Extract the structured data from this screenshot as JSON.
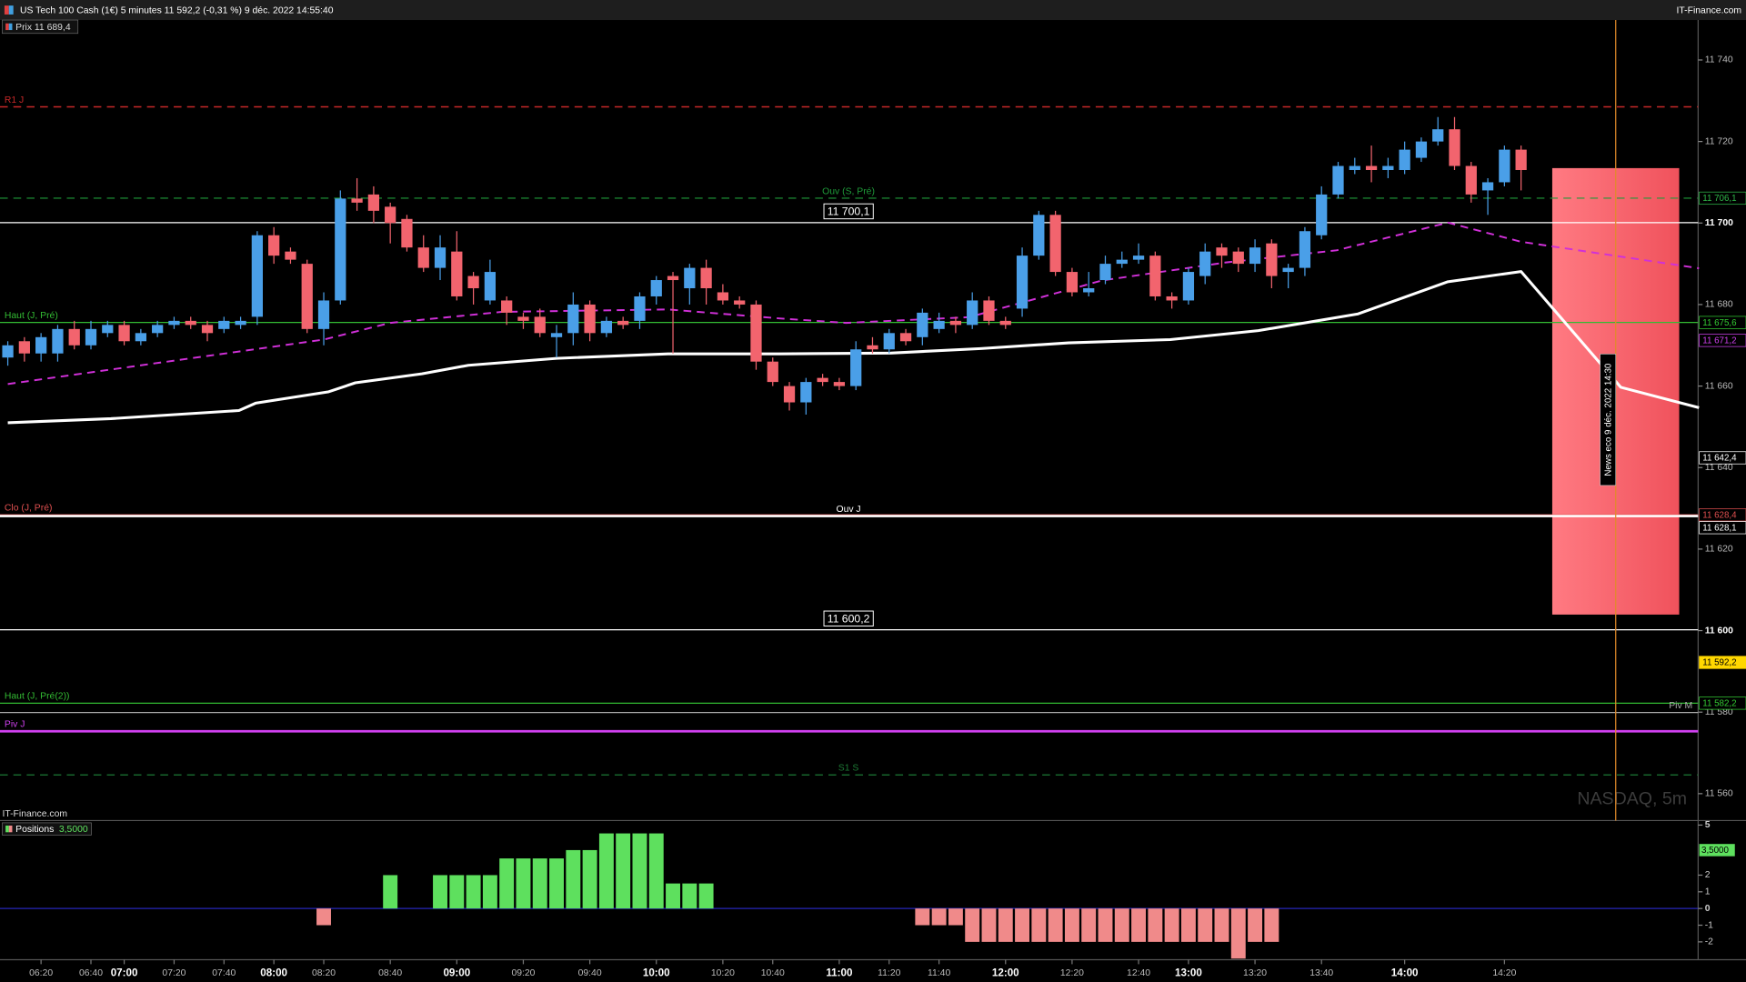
{
  "window": {
    "title": "US Tech 100 Cash (1€) 5 minutes 11 592,2 (-0,31 %) 9 déc. 2022 14:55:40",
    "brand": "IT-Finance.com"
  },
  "chart_data": [
    {
      "type": "candlestick",
      "legend": "Prix 11 689,4",
      "watermark": "NASDAQ, 5m",
      "footer": "IT-Finance.com",
      "news": "News eco 9 déc. 2022 14:30",
      "up_color": "#4a9fe8",
      "down_color": "#f2646e",
      "categories": [
        null,
        null,
        "06:20",
        null,
        null,
        "06:40",
        null,
        "07:00",
        null,
        null,
        "07:20",
        null,
        null,
        "07:40",
        null,
        null,
        "08:00",
        null,
        null,
        "08:20",
        null,
        null,
        null,
        "08:40",
        null,
        null,
        null,
        "09:00",
        null,
        null,
        null,
        "09:20",
        null,
        null,
        null,
        "09:40",
        null,
        null,
        null,
        "10:00",
        null,
        null,
        null,
        "10:20",
        null,
        null,
        "10:40",
        null,
        null,
        null,
        "11:00",
        null,
        null,
        "11:20",
        null,
        null,
        "11:40",
        null,
        null,
        null,
        "12:00",
        null,
        null,
        null,
        "12:20",
        null,
        null,
        null,
        "12:40",
        null,
        null,
        "13:00",
        null,
        null,
        null,
        "13:20",
        null,
        null,
        null,
        "13:40",
        null,
        null,
        null,
        null,
        "14:00",
        null,
        null,
        null,
        null,
        null,
        "14:20",
        null
      ],
      "open": [
        11667,
        11671,
        11668,
        11668,
        11674,
        11670,
        11673,
        11675,
        11671,
        11673,
        11675,
        11676,
        11675,
        11674,
        11675,
        11677,
        11697,
        11693,
        11690,
        11674,
        11681,
        11706,
        11707,
        11704,
        11701,
        11694,
        11689,
        11693,
        11687,
        11681,
        11681,
        11677,
        11677,
        11672,
        11673,
        11680,
        11673,
        11676,
        11676,
        11682,
        11687,
        11684,
        11689,
        11683,
        11681,
        11680,
        11666,
        11660,
        11656,
        11662,
        11661,
        11660,
        11670,
        11669,
        11673,
        11672,
        11674,
        11676,
        11675,
        11681,
        11676,
        11679,
        11692,
        11702,
        11688,
        11683,
        11686,
        11690,
        11691,
        11692,
        11682,
        11681,
        11687,
        11694,
        11693,
        11690,
        11695,
        11688,
        11689,
        11697,
        11707,
        11713,
        11714,
        11713,
        11713,
        11716,
        11720,
        11723,
        11714,
        11708,
        11710,
        11718
      ],
      "high": [
        11671,
        11672,
        11673,
        11675,
        11676,
        11676,
        11676,
        11676,
        11674,
        11676,
        11677,
        11677,
        11676,
        11677,
        11677,
        11698,
        11699,
        11694,
        11691,
        11683,
        11708,
        11711,
        11709,
        11705,
        11702,
        11697,
        11697,
        11698,
        11688,
        11691,
        11682,
        11678,
        11679,
        11675,
        11683,
        11681,
        11677,
        11677,
        11683,
        11687,
        11688,
        11690,
        11691,
        11685,
        11682,
        11681,
        11667,
        11661,
        11662,
        11663,
        11662,
        11671,
        11672,
        11674,
        11674,
        11679,
        11678,
        11677,
        11683,
        11682,
        11677,
        11694,
        11703,
        11703,
        11689,
        11688,
        11692,
        11693,
        11695,
        11693,
        11683,
        11689,
        11695,
        11695,
        11694,
        11696,
        11696,
        11690,
        11699,
        11709,
        11715,
        11716,
        11719,
        11716,
        11720,
        11721,
        11726,
        11726,
        11715,
        11711,
        11719,
        11719
      ],
      "low": [
        11665,
        11666,
        11666,
        11666,
        11669,
        11669,
        11672,
        11670,
        11670,
        11672,
        11674,
        11674,
        11671,
        11673,
        11674,
        11675,
        11690,
        11690,
        11673,
        11670,
        11680,
        11703,
        11700,
        11695,
        11693,
        11688,
        11686,
        11681,
        11680,
        11680,
        11675,
        11674,
        11672,
        11667,
        11670,
        11671,
        11672,
        11674,
        11674,
        11680,
        11668,
        11680,
        11680,
        11680,
        11679,
        11664,
        11660,
        11654,
        11653,
        11660,
        11659,
        11659,
        11668,
        11668,
        11670,
        11670,
        11673,
        11673,
        11674,
        11675,
        11674,
        11677,
        11691,
        11687,
        11682,
        11682,
        11685,
        11689,
        11690,
        11681,
        11679,
        11680,
        11685,
        11689,
        11688,
        11688,
        11684,
        11684,
        11687,
        11696,
        11706,
        11712,
        11710,
        11711,
        11712,
        11715,
        11719,
        11713,
        11705,
        11702,
        11709,
        11708
      ],
      "close": [
        11670,
        11668,
        11672,
        11674,
        11670,
        11674,
        11675,
        11671,
        11673,
        11675,
        11676,
        11675,
        11673,
        11676,
        11676,
        11697,
        11692,
        11691,
        11674,
        11681,
        11706,
        11705,
        11703,
        11700,
        11694,
        11689,
        11694,
        11682,
        11684,
        11688,
        11678,
        11676,
        11673,
        11673,
        11680,
        11673,
        11676,
        11675,
        11682,
        11686,
        11686,
        11689,
        11684,
        11681,
        11680,
        11666,
        11661,
        11656,
        11661,
        11661,
        11660,
        11669,
        11669,
        11673,
        11671,
        11678,
        11676,
        11675,
        11681,
        11676,
        11675,
        11692,
        11702,
        11688,
        11683,
        11684,
        11690,
        11691,
        11692,
        11682,
        11681,
        11688,
        11693,
        11692,
        11690,
        11694,
        11687,
        11689,
        11698,
        11707,
        11714,
        11714,
        11713,
        11714,
        11718,
        11720,
        11723,
        11714,
        11707,
        11710,
        11718,
        11713
      ],
      "lines": [
        {
          "color": "#ffffff",
          "dash": false,
          "width": 2.5,
          "x": [
            0,
            6.2,
            13.9,
            14.9,
            19.3,
            20.9,
            24.9,
            27.7,
            33,
            39.7,
            46.4,
            53.1,
            58.5,
            63.8,
            69.9,
            75.2,
            81.2,
            86.6,
            91,
            97,
            101.7
          ],
          "values": [
            11651,
            11652,
            11654,
            11655.8,
            11658.6,
            11660.8,
            11663,
            11665.1,
            11666.8,
            11667.9,
            11667.9,
            11668.1,
            11669.2,
            11670.6,
            11671.4,
            11673.6,
            11677.7,
            11685.6,
            11688.1,
            11659.7,
            11654.7
          ]
        },
        {
          "color": "#d030d8",
          "dash": true,
          "width": 1.6,
          "x": [
            0,
            19,
            23,
            29.7,
            39.7,
            46.4,
            50.4,
            57.8,
            65.8,
            73.2,
            79.9,
            86.6,
            91,
            101.7
          ],
          "values": [
            11660.5,
            11671.4,
            11675.5,
            11678.2,
            11678.8,
            11676.6,
            11675.5,
            11676.9,
            11685.9,
            11690.3,
            11693.3,
            11700.1,
            11695.4,
            11688.9
          ]
        }
      ],
      "levels": [
        {
          "label": "R1 J",
          "value": 11728.5,
          "color": "#c62828",
          "dash": true,
          "width": 1.2,
          "label_align": "left"
        },
        {
          "label": "Ouv (S, Pré)",
          "value": 11706.1,
          "color": "#1f9b3a",
          "dash": true,
          "width": 1,
          "label_align": "center"
        },
        {
          "label": "11 700,1",
          "value": 11700.1,
          "color": "#ffffff",
          "dash": false,
          "width": 1,
          "label_align": "box"
        },
        {
          "label": "Haut (J, Pré)",
          "value": 11675.6,
          "color": "#33bb33",
          "dash": false,
          "width": 1,
          "label_align": "left"
        },
        {
          "label": "Clo (J, Pré)",
          "value": 11628.4,
          "color": "#e05050",
          "dash": false,
          "width": 1,
          "label_align": "left"
        },
        {
          "label": "Ouv J",
          "value": 11628.1,
          "color": "#ffffff",
          "dash": false,
          "width": 2.2,
          "label_align": "center"
        },
        {
          "label": "11 600,2",
          "value": 11600.2,
          "color": "#ffffff",
          "dash": false,
          "width": 1,
          "label_align": "box"
        },
        {
          "label": "Haut (J, Pré(2))",
          "value": 11582.2,
          "color": "#33bb33",
          "dash": false,
          "width": 1,
          "label_align": "left"
        },
        {
          "label": "Piv M",
          "value": 11579.9,
          "color": "#aaaaaa",
          "dash": false,
          "width": 1,
          "label_align": "right"
        },
        {
          "label": "Piv J",
          "value": 11575.3,
          "color": "#d040f0",
          "dash": false,
          "width": 2.2,
          "label_align": "left"
        },
        {
          "label": "S1 S",
          "value": 11564.6,
          "color": "#1d7a35",
          "dash": true,
          "width": 1,
          "label_align": "center"
        }
      ],
      "price_tags": [
        {
          "value": 11706.1,
          "label": "11 706,1",
          "color": "#2fb84a",
          "filled": false
        },
        {
          "value": 11675.6,
          "label": "11 675,6",
          "color": "#33cc33",
          "filled": false
        },
        {
          "value": 11671.2,
          "label": "11 671,2",
          "color": "#d040f0",
          "filled": false
        },
        {
          "value": 11642.4,
          "label": "11 642,4",
          "color": "#ffffff",
          "filled": false
        },
        {
          "value": 11628.4,
          "label": "11 628,4",
          "color": "#e05050",
          "filled": false
        },
        {
          "value": 11628.1,
          "label": "11 628,1",
          "color": "#ffffff",
          "filled": false
        },
        {
          "value": 11592.2,
          "label": "11 592,2",
          "color": "#ffd700",
          "filled": true
        },
        {
          "value": 11582.2,
          "label": "11 582,2",
          "color": "#33cc33",
          "filled": false
        }
      ],
      "ylim": [
        11553.4,
        11749.8
      ],
      "yticks": [
        {
          "value": 11740,
          "label": "11 740"
        },
        {
          "value": 11720,
          "label": "11 720"
        },
        {
          "value": 11700,
          "label": "11 700",
          "bold": true
        },
        {
          "value": 11680,
          "label": "11 680"
        },
        {
          "value": 11660,
          "label": "11 660"
        },
        {
          "value": 11640,
          "label": "11 640"
        },
        {
          "value": 11620,
          "label": "11 620"
        },
        {
          "value": 11600,
          "label": "11 600",
          "bold": true
        },
        {
          "value": 11580,
          "label": "11 580"
        },
        {
          "value": 11560,
          "label": "11 560"
        }
      ]
    },
    {
      "type": "bar",
      "title": "Positions",
      "current": {
        "value": 3.5,
        "label": "3,5000"
      },
      "up_color": "#5ee05e",
      "down_color": "#f08a8a",
      "values": [
        0,
        0,
        0,
        0,
        0,
        0,
        0,
        0,
        0,
        0,
        0,
        0,
        0,
        0,
        0,
        0,
        0,
        0,
        0,
        -1,
        0,
        0,
        0,
        2,
        0,
        0,
        2,
        2,
        2,
        2,
        3,
        3,
        3,
        3,
        3.5,
        3.5,
        4.5,
        4.5,
        4.5,
        4.5,
        1.5,
        1.5,
        1.5,
        0,
        0,
        0,
        0,
        0,
        0,
        0,
        0,
        0,
        0,
        0,
        0,
        -1,
        -1,
        -1,
        -2,
        -2,
        -2,
        -2,
        -2,
        -2,
        -2,
        -2,
        -2,
        -2,
        -2,
        -2,
        -2,
        -2,
        -2,
        -2,
        -3,
        -2,
        -2,
        0,
        0,
        0,
        0,
        0,
        0,
        0,
        0,
        0,
        0,
        0,
        0,
        0,
        0,
        0
      ],
      "ylim": [
        -3.07,
        5.27
      ],
      "yticks": [
        5,
        2,
        1,
        0,
        -1,
        -2
      ]
    }
  ]
}
